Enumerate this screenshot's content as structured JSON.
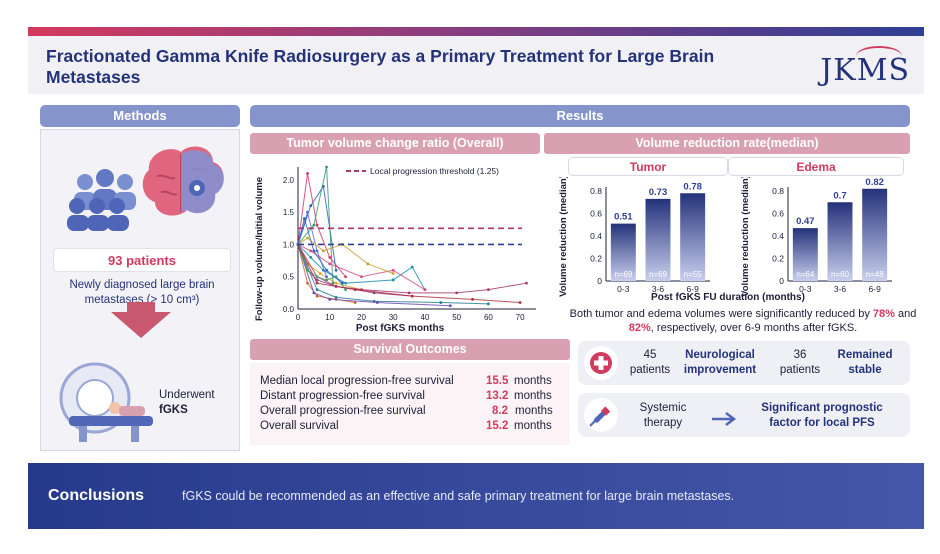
{
  "header": {
    "title": "Fractionated Gamma Knife Radiosurgery as a Primary Treatment for Large Brain Metastases",
    "logo": "JKMS"
  },
  "methods": {
    "heading": "Methods",
    "patients": "93 patients",
    "description": "Newly diagnosed large brain metastases (> 10 cm³)",
    "procedure_line1": "Underwent",
    "procedure_line2": "fGKS"
  },
  "results": {
    "heading": "Results",
    "tumor_panel_title": "Tumor volume change ratio (Overall)",
    "reduction_panel_title": "Volume reduction rate(median)",
    "survival_title": "Survival Outcomes",
    "survival": [
      {
        "label": "Median local progression-free survival",
        "value": "15.5",
        "unit": "months"
      },
      {
        "label": "Distant progression-free survival",
        "value": "13.2",
        "unit": "months"
      },
      {
        "label": "Overall progression-free survival",
        "value": "8.2",
        "unit": "months"
      },
      {
        "label": "Overall survival",
        "value": "15.2",
        "unit": "months"
      }
    ],
    "summary_before": "Both tumor and edema volumes were significantly reduced by",
    "summary_pct1": "78%",
    "summary_and": "and",
    "summary_pct2": "82%",
    "summary_after": ", respectively, over 6-9 months after fGKS.",
    "neuro": {
      "count1": "45",
      "patients1": "patients",
      "outcome1_line1": "Neurological",
      "outcome1_line2": "improvement",
      "count2": "36",
      "patients2": "patients",
      "outcome2_line1": "Remained",
      "outcome2_line2": "stable"
    },
    "therapy": {
      "label_line1": "Systemic",
      "label_line2": "therapy",
      "result_line1": "Significant prognostic",
      "result_line2": "factor for local PFS"
    }
  },
  "conclusion": {
    "title": "Conclusions",
    "text": "fGKS could be recommended as an effective and safe primary treatment for large brain metastases."
  },
  "colors": {
    "navy": "#24327a",
    "crimson": "#d23a5e",
    "pink": "#d9a0b1",
    "lavender": "#8594cb"
  },
  "chart_data": [
    {
      "type": "line",
      "title": "Tumor volume change ratio (Overall)",
      "xlabel": "Post fGKS months",
      "ylabel": "Follow-up volume/Initial volume",
      "xlim": [
        0,
        75
      ],
      "ylim": [
        0,
        2.2
      ],
      "x_ticks": [
        "0",
        "10",
        "20",
        "30",
        "40",
        "50",
        "60",
        "70"
      ],
      "y_ticks": [
        "0.0",
        "0.5",
        "1.0",
        "1.5",
        "2.0"
      ],
      "reference_lines": [
        {
          "name": "Local progression threshold (1.25)",
          "y": 1.25,
          "style": "dashed"
        },
        {
          "name": "baseline",
          "y": 1.0,
          "style": "dashed"
        }
      ],
      "legend": "Local progression threshold (1.25)",
      "series": [
        {
          "name": "p1",
          "x": [
            0,
            3,
            6,
            10,
            15
          ],
          "y": [
            1.0,
            2.1,
            1.3,
            0.8,
            0.5
          ]
        },
        {
          "name": "p2",
          "x": [
            0,
            4,
            8,
            12
          ],
          "y": [
            1.0,
            1.6,
            1.9,
            0.6
          ]
        },
        {
          "name": "p3",
          "x": [
            0,
            3,
            7,
            12,
            20
          ],
          "y": [
            1.0,
            0.7,
            0.55,
            0.4,
            0.3
          ]
        },
        {
          "name": "p4",
          "x": [
            0,
            5,
            9,
            11
          ],
          "y": [
            1.0,
            1.3,
            2.2,
            0.4
          ]
        },
        {
          "name": "p5",
          "x": [
            0,
            3,
            6,
            12,
            24,
            36
          ],
          "y": [
            1.0,
            0.6,
            0.45,
            0.35,
            0.25,
            0.2
          ]
        },
        {
          "name": "p6",
          "x": [
            0,
            4,
            8,
            15,
            30,
            36,
            40
          ],
          "y": [
            1.0,
            0.8,
            0.6,
            0.4,
            0.45,
            0.65,
            0.3
          ]
        },
        {
          "name": "p7",
          "x": [
            0,
            6,
            12,
            20,
            35,
            50,
            60,
            72
          ],
          "y": [
            1.0,
            0.5,
            0.35,
            0.3,
            0.25,
            0.25,
            0.3,
            0.4
          ]
        },
        {
          "name": "p8",
          "x": [
            0,
            3,
            6,
            9
          ],
          "y": [
            1.0,
            1.5,
            0.9,
            0.5
          ]
        },
        {
          "name": "p9",
          "x": [
            0,
            3,
            6,
            12,
            18
          ],
          "y": [
            1.0,
            0.4,
            0.2,
            0.15,
            0.1
          ]
        },
        {
          "name": "p10",
          "x": [
            0,
            6,
            12,
            24,
            45,
            60
          ],
          "y": [
            1.0,
            0.3,
            0.18,
            0.12,
            0.1,
            0.08
          ]
        },
        {
          "name": "p11",
          "x": [
            0,
            4,
            10,
            20,
            30,
            40
          ],
          "y": [
            1.0,
            0.9,
            0.7,
            0.5,
            0.6,
            0.3
          ]
        },
        {
          "name": "p12",
          "x": [
            0,
            5,
            10,
            25,
            48
          ],
          "y": [
            1.0,
            0.25,
            0.15,
            0.1,
            0.05
          ]
        },
        {
          "name": "p13",
          "x": [
            0,
            3,
            8,
            14,
            22,
            30
          ],
          "y": [
            1.0,
            1.1,
            0.9,
            1.0,
            0.7,
            0.55
          ]
        },
        {
          "name": "p14",
          "x": [
            0,
            3,
            6,
            9,
            12,
            15
          ],
          "y": [
            1.0,
            0.6,
            0.5,
            0.45,
            0.5,
            0.3
          ]
        },
        {
          "name": "p15",
          "x": [
            0,
            6,
            18,
            36,
            55,
            70
          ],
          "y": [
            1.0,
            0.4,
            0.3,
            0.2,
            0.15,
            0.1
          ]
        },
        {
          "name": "p16",
          "x": [
            0,
            2,
            5,
            9,
            14
          ],
          "y": [
            1.0,
            1.4,
            0.9,
            0.6,
            0.4
          ]
        }
      ]
    },
    {
      "type": "bar",
      "title": "Tumor",
      "xlabel": "Post fGKS FU duration (months)",
      "ylabel": "Volume reduction (median)",
      "categories": [
        "0-3",
        "3-6",
        "6-9"
      ],
      "values": [
        0.51,
        0.73,
        0.78
      ],
      "n_labels": [
        "n=69",
        "n=69",
        "n=55"
      ],
      "ylim": [
        0,
        0.8
      ],
      "y_ticks": [
        "0",
        "0.2",
        "0.4",
        "0.6",
        "0.8"
      ]
    },
    {
      "type": "bar",
      "title": "Edema",
      "xlabel": "Post fGKS FU duration (months)",
      "ylabel": "Volume reduction (median)",
      "categories": [
        "0-3",
        "3-6",
        "6-9"
      ],
      "values": [
        0.47,
        0.7,
        0.82
      ],
      "n_labels": [
        "n=64",
        "n=60",
        "n=48"
      ],
      "ylim": [
        0,
        0.8
      ],
      "y_ticks": [
        "0",
        "0.2",
        "0.4",
        "0.6",
        "0.8"
      ]
    }
  ]
}
